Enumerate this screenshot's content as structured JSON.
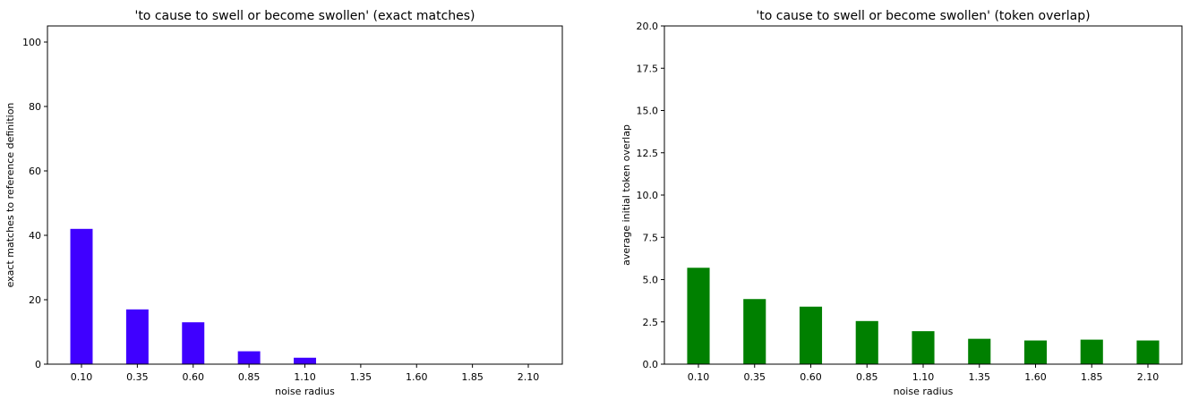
{
  "chart_data": [
    {
      "type": "bar",
      "title": "'to cause to swell or become swollen' (exact matches)",
      "x_label": "noise radius",
      "y_label": "exact matches to reference definition",
      "categories": [
        "0.10",
        "0.35",
        "0.60",
        "0.85",
        "1.10",
        "1.35",
        "1.60",
        "1.85",
        "2.10"
      ],
      "values": [
        42,
        17,
        13,
        4,
        2,
        0,
        0,
        0,
        0
      ],
      "color": "#3f00ff",
      "ylim": [
        0,
        105
      ],
      "yticks": [
        0,
        20,
        40,
        60,
        80,
        100
      ]
    },
    {
      "type": "bar",
      "title": "'to cause to swell or become swollen' (token overlap)",
      "x_label": "noise radius",
      "y_label": "average initial token overlap",
      "categories": [
        "0.10",
        "0.35",
        "0.60",
        "0.85",
        "1.10",
        "1.35",
        "1.60",
        "1.85",
        "2.10"
      ],
      "values": [
        5.7,
        3.85,
        3.4,
        2.55,
        1.95,
        1.5,
        1.4,
        1.45,
        1.4
      ],
      "color": "#008000",
      "ylim": [
        0,
        20
      ],
      "yticks": [
        {
          "value": 0,
          "label": "0.0"
        },
        2.5,
        {
          "value": 5,
          "label": "5.0"
        },
        7.5,
        {
          "value": 10,
          "label": "10.0"
        },
        12.5,
        {
          "value": 15,
          "label": "15.0"
        },
        17.5,
        {
          "value": 20,
          "label": "20.0"
        }
      ]
    }
  ]
}
